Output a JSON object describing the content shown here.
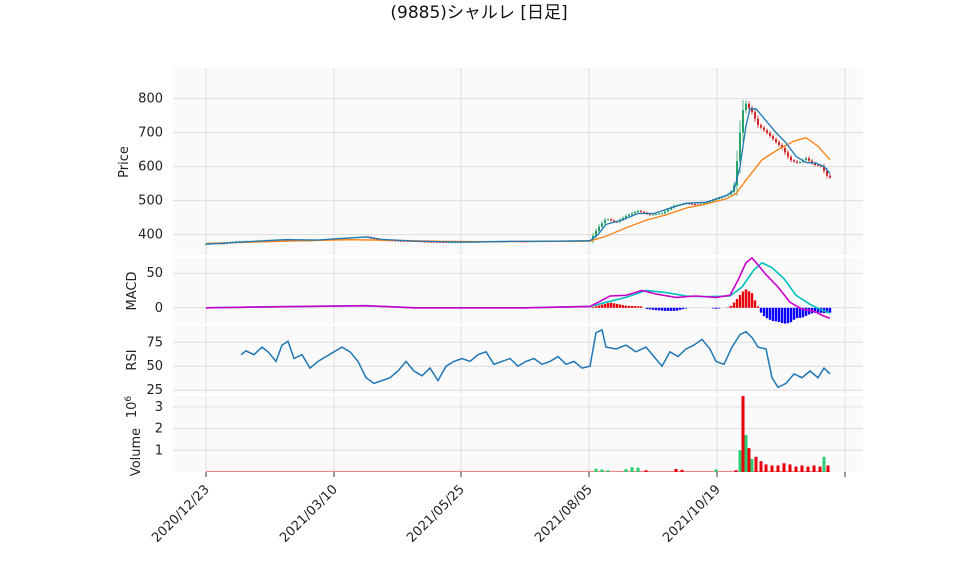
{
  "chart_data": {
    "type": "candlestick",
    "title": "(9885)シャルレ  [日足]",
    "x_tick_labels": [
      "2020/12/23",
      "2021/03/10",
      "2021/05/25",
      "2021/08/05",
      "2021/10/19"
    ],
    "price_panel": {
      "ylabel": "Price",
      "yticks": [
        "400",
        "500",
        "600",
        "700",
        "800"
      ],
      "ylim": [
        340,
        890
      ],
      "series": [
        {
          "name": "",
          "color": "#1f77b4"
        },
        {
          "name": "",
          "color": "#ff7f0e"
        }
      ],
      "close": [
        {
          "x": 0,
          "y": 372
        },
        {
          "x": 8,
          "y": 375
        },
        {
          "x": 16,
          "y": 373
        },
        {
          "x": 24,
          "y": 378
        },
        {
          "x": 32,
          "y": 380
        },
        {
          "x": 48,
          "y": 381
        },
        {
          "x": 64,
          "y": 384
        },
        {
          "x": 80,
          "y": 386
        },
        {
          "x": 96,
          "y": 382
        },
        {
          "x": 112,
          "y": 384
        },
        {
          "x": 128,
          "y": 388
        },
        {
          "x": 144,
          "y": 391
        },
        {
          "x": 160,
          "y": 394
        },
        {
          "x": 168,
          "y": 387
        },
        {
          "x": 176,
          "y": 384
        },
        {
          "x": 192,
          "y": 382
        },
        {
          "x": 208,
          "y": 381
        },
        {
          "x": 224,
          "y": 379
        },
        {
          "x": 240,
          "y": 378
        },
        {
          "x": 256,
          "y": 378
        },
        {
          "x": 272,
          "y": 379
        },
        {
          "x": 288,
          "y": 380
        },
        {
          "x": 304,
          "y": 381
        },
        {
          "x": 320,
          "y": 380
        },
        {
          "x": 336,
          "y": 381
        },
        {
          "x": 352,
          "y": 381
        },
        {
          "x": 368,
          "y": 381
        },
        {
          "x": 384,
          "y": 382
        },
        {
          "x": 392,
          "y": 420
        },
        {
          "x": 400,
          "y": 447
        },
        {
          "x": 410,
          "y": 436
        },
        {
          "x": 420,
          "y": 455
        },
        {
          "x": 432,
          "y": 470
        },
        {
          "x": 444,
          "y": 458
        },
        {
          "x": 456,
          "y": 463
        },
        {
          "x": 468,
          "y": 485
        },
        {
          "x": 480,
          "y": 492
        },
        {
          "x": 492,
          "y": 487
        },
        {
          "x": 504,
          "y": 498
        },
        {
          "x": 516,
          "y": 512
        },
        {
          "x": 524,
          "y": 520
        },
        {
          "x": 528,
          "y": 545
        },
        {
          "x": 532,
          "y": 640
        },
        {
          "x": 536,
          "y": 760
        },
        {
          "x": 540,
          "y": 785
        },
        {
          "x": 546,
          "y": 760
        },
        {
          "x": 552,
          "y": 722
        },
        {
          "x": 560,
          "y": 702
        },
        {
          "x": 568,
          "y": 678
        },
        {
          "x": 576,
          "y": 655
        },
        {
          "x": 584,
          "y": 620
        },
        {
          "x": 592,
          "y": 610
        },
        {
          "x": 600,
          "y": 625
        },
        {
          "x": 608,
          "y": 605
        },
        {
          "x": 616,
          "y": 600
        },
        {
          "x": 620,
          "y": 575
        },
        {
          "x": 624,
          "y": 568
        }
      ],
      "ma_short": [
        {
          "x": 0,
          "y": 372
        },
        {
          "x": 24,
          "y": 376
        },
        {
          "x": 48,
          "y": 380
        },
        {
          "x": 80,
          "y": 385
        },
        {
          "x": 112,
          "y": 384
        },
        {
          "x": 144,
          "y": 390
        },
        {
          "x": 160,
          "y": 393
        },
        {
          "x": 176,
          "y": 386
        },
        {
          "x": 208,
          "y": 381
        },
        {
          "x": 256,
          "y": 378
        },
        {
          "x": 304,
          "y": 380
        },
        {
          "x": 352,
          "y": 381
        },
        {
          "x": 384,
          "y": 382
        },
        {
          "x": 392,
          "y": 400
        },
        {
          "x": 400,
          "y": 430
        },
        {
          "x": 416,
          "y": 443
        },
        {
          "x": 432,
          "y": 462
        },
        {
          "x": 448,
          "y": 462
        },
        {
          "x": 464,
          "y": 478
        },
        {
          "x": 480,
          "y": 492
        },
        {
          "x": 500,
          "y": 495
        },
        {
          "x": 520,
          "y": 514
        },
        {
          "x": 528,
          "y": 530
        },
        {
          "x": 534,
          "y": 600
        },
        {
          "x": 540,
          "y": 720
        },
        {
          "x": 544,
          "y": 770
        },
        {
          "x": 550,
          "y": 770
        },
        {
          "x": 560,
          "y": 735
        },
        {
          "x": 570,
          "y": 700
        },
        {
          "x": 580,
          "y": 670
        },
        {
          "x": 590,
          "y": 630
        },
        {
          "x": 600,
          "y": 612
        },
        {
          "x": 610,
          "y": 610
        },
        {
          "x": 618,
          "y": 600
        },
        {
          "x": 624,
          "y": 580
        }
      ],
      "ma_long": [
        {
          "x": 0,
          "y": 374
        },
        {
          "x": 48,
          "y": 378
        },
        {
          "x": 96,
          "y": 382
        },
        {
          "x": 144,
          "y": 385
        },
        {
          "x": 192,
          "y": 383
        },
        {
          "x": 240,
          "y": 380
        },
        {
          "x": 288,
          "y": 379
        },
        {
          "x": 336,
          "y": 380
        },
        {
          "x": 384,
          "y": 381
        },
        {
          "x": 400,
          "y": 395
        },
        {
          "x": 420,
          "y": 420
        },
        {
          "x": 440,
          "y": 442
        },
        {
          "x": 460,
          "y": 458
        },
        {
          "x": 480,
          "y": 478
        },
        {
          "x": 500,
          "y": 490
        },
        {
          "x": 520,
          "y": 505
        },
        {
          "x": 530,
          "y": 520
        },
        {
          "x": 540,
          "y": 560
        },
        {
          "x": 556,
          "y": 620
        },
        {
          "x": 572,
          "y": 650
        },
        {
          "x": 588,
          "y": 675
        },
        {
          "x": 600,
          "y": 685
        },
        {
          "x": 612,
          "y": 660
        },
        {
          "x": 624,
          "y": 620
        }
      ]
    },
    "macd_panel": {
      "ylabel": "MACD",
      "yticks": [
        "0",
        "50"
      ],
      "ylim": [
        -22,
        72
      ],
      "series": [
        {
          "name": "",
          "color": "#cc00cc"
        },
        {
          "name": "",
          "color": "#00bfbf"
        }
      ],
      "macd": [
        {
          "x": 0,
          "y": 0
        },
        {
          "x": 96,
          "y": 2
        },
        {
          "x": 160,
          "y": 3
        },
        {
          "x": 208,
          "y": 0
        },
        {
          "x": 320,
          "y": 0
        },
        {
          "x": 384,
          "y": 2
        },
        {
          "x": 392,
          "y": 8
        },
        {
          "x": 404,
          "y": 17
        },
        {
          "x": 420,
          "y": 18
        },
        {
          "x": 436,
          "y": 25
        },
        {
          "x": 450,
          "y": 20
        },
        {
          "x": 470,
          "y": 15
        },
        {
          "x": 490,
          "y": 17
        },
        {
          "x": 510,
          "y": 15
        },
        {
          "x": 524,
          "y": 18
        },
        {
          "x": 532,
          "y": 40
        },
        {
          "x": 540,
          "y": 65
        },
        {
          "x": 546,
          "y": 72
        },
        {
          "x": 552,
          "y": 62
        },
        {
          "x": 560,
          "y": 48
        },
        {
          "x": 572,
          "y": 30
        },
        {
          "x": 584,
          "y": 8
        },
        {
          "x": 596,
          "y": -2
        },
        {
          "x": 608,
          "y": -5
        },
        {
          "x": 618,
          "y": -12
        },
        {
          "x": 624,
          "y": -15
        }
      ],
      "signal": [
        {
          "x": 0,
          "y": 0
        },
        {
          "x": 96,
          "y": 2
        },
        {
          "x": 160,
          "y": 3
        },
        {
          "x": 208,
          "y": 0
        },
        {
          "x": 320,
          "y": 0
        },
        {
          "x": 384,
          "y": 2
        },
        {
          "x": 400,
          "y": 8
        },
        {
          "x": 420,
          "y": 15
        },
        {
          "x": 440,
          "y": 25
        },
        {
          "x": 460,
          "y": 22
        },
        {
          "x": 480,
          "y": 17
        },
        {
          "x": 500,
          "y": 16
        },
        {
          "x": 524,
          "y": 17
        },
        {
          "x": 536,
          "y": 30
        },
        {
          "x": 548,
          "y": 55
        },
        {
          "x": 556,
          "y": 65
        },
        {
          "x": 566,
          "y": 58
        },
        {
          "x": 578,
          "y": 42
        },
        {
          "x": 590,
          "y": 18
        },
        {
          "x": 604,
          "y": 5
        },
        {
          "x": 614,
          "y": -2
        },
        {
          "x": 624,
          "y": -8
        }
      ]
    },
    "rsi_panel": {
      "ylabel": "RSI",
      "yticks": [
        "25",
        "50",
        "75"
      ],
      "ylim": [
        22,
        92
      ],
      "series": [
        {
          "name": "",
          "color": "#1f77b4"
        }
      ],
      "values": [
        {
          "x": 35,
          "y": 62
        },
        {
          "x": 40,
          "y": 66
        },
        {
          "x": 48,
          "y": 62
        },
        {
          "x": 56,
          "y": 70
        },
        {
          "x": 62,
          "y": 65
        },
        {
          "x": 70,
          "y": 55
        },
        {
          "x": 76,
          "y": 72
        },
        {
          "x": 82,
          "y": 76
        },
        {
          "x": 88,
          "y": 58
        },
        {
          "x": 96,
          "y": 62
        },
        {
          "x": 104,
          "y": 48
        },
        {
          "x": 112,
          "y": 55
        },
        {
          "x": 120,
          "y": 60
        },
        {
          "x": 128,
          "y": 65
        },
        {
          "x": 136,
          "y": 70
        },
        {
          "x": 144,
          "y": 65
        },
        {
          "x": 152,
          "y": 55
        },
        {
          "x": 160,
          "y": 38
        },
        {
          "x": 168,
          "y": 32
        },
        {
          "x": 176,
          "y": 35
        },
        {
          "x": 184,
          "y": 38
        },
        {
          "x": 192,
          "y": 45
        },
        {
          "x": 200,
          "y": 55
        },
        {
          "x": 208,
          "y": 45
        },
        {
          "x": 216,
          "y": 40
        },
        {
          "x": 224,
          "y": 48
        },
        {
          "x": 232,
          "y": 35
        },
        {
          "x": 240,
          "y": 50
        },
        {
          "x": 248,
          "y": 55
        },
        {
          "x": 256,
          "y": 58
        },
        {
          "x": 264,
          "y": 55
        },
        {
          "x": 272,
          "y": 62
        },
        {
          "x": 280,
          "y": 65
        },
        {
          "x": 288,
          "y": 52
        },
        {
          "x": 296,
          "y": 55
        },
        {
          "x": 304,
          "y": 58
        },
        {
          "x": 312,
          "y": 50
        },
        {
          "x": 320,
          "y": 55
        },
        {
          "x": 328,
          "y": 58
        },
        {
          "x": 336,
          "y": 52
        },
        {
          "x": 344,
          "y": 55
        },
        {
          "x": 352,
          "y": 60
        },
        {
          "x": 360,
          "y": 52
        },
        {
          "x": 368,
          "y": 55
        },
        {
          "x": 376,
          "y": 48
        },
        {
          "x": 384,
          "y": 50
        },
        {
          "x": 390,
          "y": 85
        },
        {
          "x": 396,
          "y": 88
        },
        {
          "x": 400,
          "y": 70
        },
        {
          "x": 410,
          "y": 68
        },
        {
          "x": 420,
          "y": 72
        },
        {
          "x": 430,
          "y": 65
        },
        {
          "x": 440,
          "y": 70
        },
        {
          "x": 448,
          "y": 60
        },
        {
          "x": 456,
          "y": 50
        },
        {
          "x": 464,
          "y": 65
        },
        {
          "x": 472,
          "y": 60
        },
        {
          "x": 480,
          "y": 68
        },
        {
          "x": 488,
          "y": 72
        },
        {
          "x": 496,
          "y": 78
        },
        {
          "x": 504,
          "y": 68
        },
        {
          "x": 510,
          "y": 55
        },
        {
          "x": 518,
          "y": 52
        },
        {
          "x": 526,
          "y": 70
        },
        {
          "x": 534,
          "y": 83
        },
        {
          "x": 540,
          "y": 86
        },
        {
          "x": 546,
          "y": 80
        },
        {
          "x": 552,
          "y": 70
        },
        {
          "x": 560,
          "y": 68
        },
        {
          "x": 566,
          "y": 38
        },
        {
          "x": 572,
          "y": 28
        },
        {
          "x": 580,
          "y": 32
        },
        {
          "x": 588,
          "y": 42
        },
        {
          "x": 596,
          "y": 38
        },
        {
          "x": 604,
          "y": 45
        },
        {
          "x": 612,
          "y": 38
        },
        {
          "x": 618,
          "y": 48
        },
        {
          "x": 624,
          "y": 42
        }
      ]
    },
    "volume_panel": {
      "ylabel": "Volume",
      "yscale_label": "10^6",
      "yticks": [
        "1",
        "2",
        "3"
      ],
      "ylim": [
        0,
        3.5
      ],
      "bars": [
        {
          "x": 390,
          "v": 0.15
        },
        {
          "x": 396,
          "v": 0.12
        },
        {
          "x": 402,
          "v": 0.08
        },
        {
          "x": 420,
          "v": 0.14
        },
        {
          "x": 426,
          "v": 0.22
        },
        {
          "x": 432,
          "v": 0.2
        },
        {
          "x": 440,
          "v": 0.08
        },
        {
          "x": 470,
          "v": 0.14
        },
        {
          "x": 476,
          "v": 0.1
        },
        {
          "x": 510,
          "v": 0.12
        },
        {
          "x": 530,
          "v": 0.08
        },
        {
          "x": 534,
          "v": 1.0
        },
        {
          "x": 537,
          "v": 3.5
        },
        {
          "x": 540,
          "v": 1.7
        },
        {
          "x": 543,
          "v": 1.1
        },
        {
          "x": 546,
          "v": 0.6
        },
        {
          "x": 550,
          "v": 0.7
        },
        {
          "x": 555,
          "v": 0.5
        },
        {
          "x": 560,
          "v": 0.35
        },
        {
          "x": 566,
          "v": 0.3
        },
        {
          "x": 572,
          "v": 0.3
        },
        {
          "x": 578,
          "v": 0.4
        },
        {
          "x": 584,
          "v": 0.35
        },
        {
          "x": 590,
          "v": 0.25
        },
        {
          "x": 596,
          "v": 0.3
        },
        {
          "x": 602,
          "v": 0.25
        },
        {
          "x": 608,
          "v": 0.3
        },
        {
          "x": 614,
          "v": 0.25
        },
        {
          "x": 618,
          "v": 0.7
        },
        {
          "x": 622,
          "v": 0.3
        }
      ]
    }
  }
}
